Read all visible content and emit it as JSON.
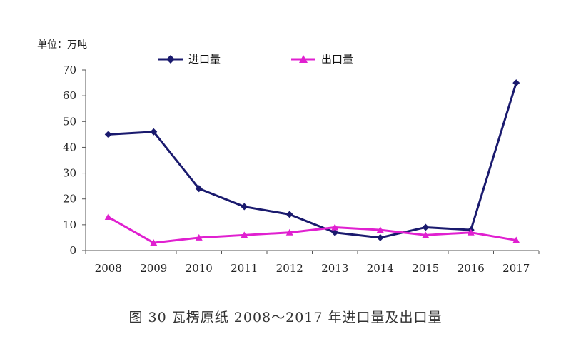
{
  "chart_data": {
    "type": "line",
    "unit_label": "单位：万吨",
    "caption": "图 30   瓦楞原纸 2008～2017 年进口量及出口量",
    "categories": [
      "2008",
      "2009",
      "2010",
      "2011",
      "2012",
      "2013",
      "2014",
      "2015",
      "2016",
      "2017"
    ],
    "ylim": [
      0,
      70
    ],
    "yticks": [
      0,
      10,
      20,
      30,
      40,
      50,
      60,
      70
    ],
    "grid": false,
    "legend_position": "top",
    "series": [
      {
        "name": "进口量",
        "marker": "diamond",
        "color": "#1a1a6e",
        "values": [
          45,
          46,
          24,
          17,
          14,
          7,
          5,
          9,
          8,
          65
        ]
      },
      {
        "name": "出口量",
        "marker": "triangle",
        "color": "#e020d0",
        "values": [
          13,
          3,
          5,
          6,
          7,
          9,
          8,
          6,
          7,
          4
        ]
      }
    ]
  }
}
